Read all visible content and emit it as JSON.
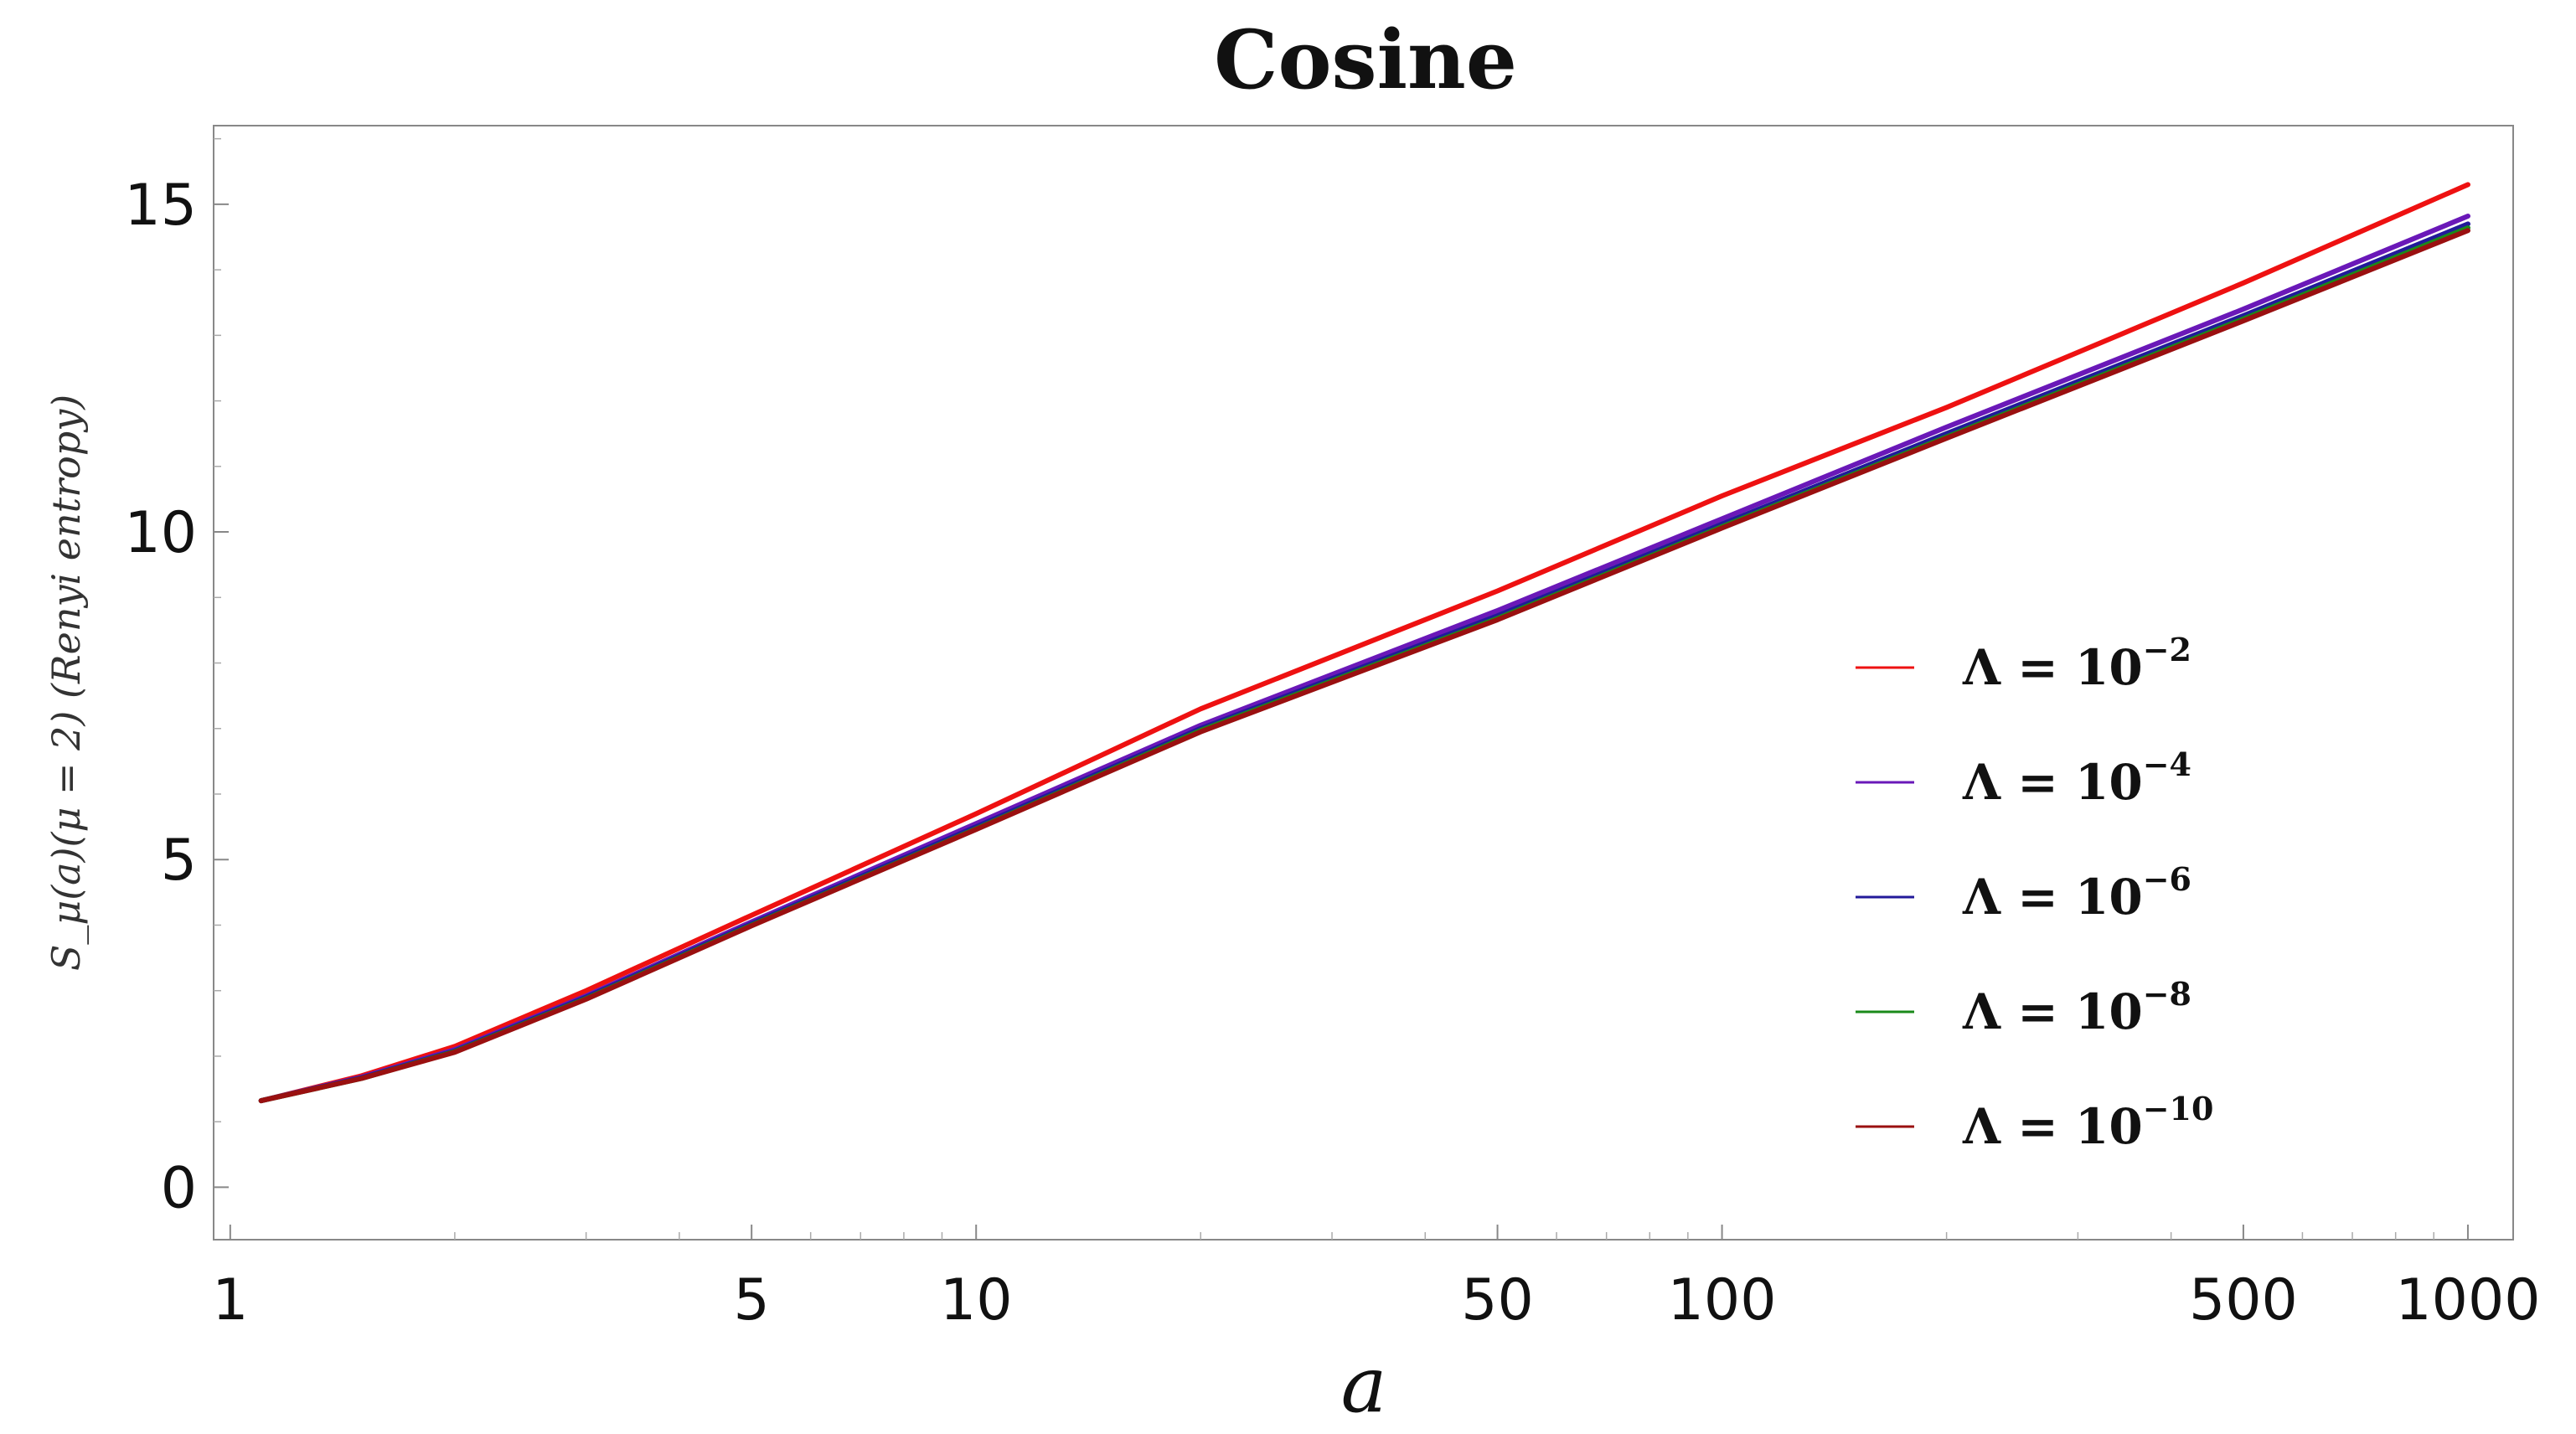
{
  "chart_data": {
    "type": "line",
    "title": "Cosine",
    "xlabel": "a",
    "ylabel": "S_μ(a)(μ = 2) (Renyi entropy)",
    "x_scale": "log",
    "xlim": [
      0.95,
      1150
    ],
    "ylim": [
      -0.8,
      16.2
    ],
    "x_ticks": [
      1,
      5,
      10,
      50,
      100,
      500,
      1000
    ],
    "x_tick_labels": [
      "1",
      "5",
      "10",
      "50",
      "100",
      "500",
      "1000"
    ],
    "y_ticks": [
      0,
      5,
      10,
      15
    ],
    "y_tick_labels": [
      "0",
      "5",
      "10",
      "15"
    ],
    "grid": false,
    "legend_position": "right",
    "series": [
      {
        "name": "Λ = 10⁻²",
        "legend_base": "Λ = 10",
        "legend_exp": "−2",
        "color": "#ee1111",
        "x": [
          1.1,
          1.5,
          2,
          3,
          5,
          10,
          20,
          50,
          100,
          200,
          500,
          1000
        ],
        "y": [
          1.32,
          1.7,
          2.15,
          3.0,
          4.15,
          5.7,
          7.3,
          9.1,
          10.55,
          11.9,
          13.8,
          15.3
        ]
      },
      {
        "name": "Λ = 10⁻⁴",
        "legend_base": "Λ = 10",
        "legend_exp": "−4",
        "color": "#6a18b8",
        "x": [
          1.1,
          1.5,
          2,
          3,
          5,
          10,
          20,
          50,
          100,
          200,
          500,
          1000
        ],
        "y": [
          1.32,
          1.68,
          2.1,
          2.92,
          4.05,
          5.55,
          7.05,
          8.8,
          10.2,
          11.6,
          13.4,
          14.82
        ]
      },
      {
        "name": "Λ = 10⁻⁶",
        "legend_base": "Λ = 10",
        "legend_exp": "−6",
        "color": "#221a9a",
        "x": [
          1.1,
          1.5,
          2,
          3,
          5,
          10,
          20,
          50,
          100,
          200,
          500,
          1000
        ],
        "y": [
          1.32,
          1.67,
          2.08,
          2.9,
          4.02,
          5.5,
          7.0,
          8.72,
          10.12,
          11.5,
          13.3,
          14.7
        ]
      },
      {
        "name": "Λ = 10⁻⁸",
        "legend_base": "Λ = 10",
        "legend_exp": "−8",
        "color": "#1a8a1a",
        "x": [
          1.1,
          1.5,
          2,
          3,
          5,
          10,
          20,
          50,
          100,
          200,
          500,
          1000
        ],
        "y": [
          1.32,
          1.66,
          2.07,
          2.88,
          4.0,
          5.47,
          6.97,
          8.68,
          10.08,
          11.45,
          13.25,
          14.64
        ]
      },
      {
        "name": "Λ = 10⁻¹⁰",
        "legend_base": "Λ = 10",
        "legend_exp": "−10",
        "color": "#9a1010",
        "x": [
          1.1,
          1.5,
          2,
          3,
          5,
          10,
          20,
          50,
          100,
          200,
          500,
          1000
        ],
        "y": [
          1.32,
          1.66,
          2.06,
          2.87,
          3.99,
          5.46,
          6.95,
          8.66,
          10.06,
          11.43,
          13.22,
          14.6
        ]
      }
    ]
  }
}
